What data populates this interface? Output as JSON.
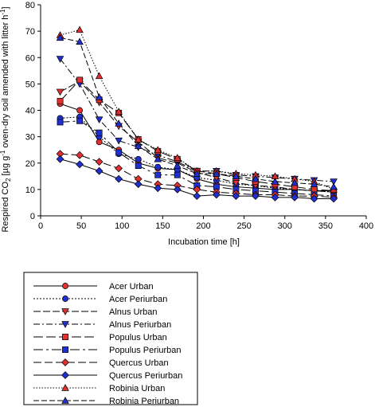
{
  "chart_data": {
    "type": "line",
    "x": [
      24,
      48,
      72,
      96,
      120,
      144,
      168,
      192,
      216,
      240,
      264,
      288,
      312,
      336,
      360
    ],
    "xlabel": "Incubation time [h]",
    "ylabel_prefix": "Respired CO",
    "ylabel_sub": "2",
    "ylabel_mid": " [µg g",
    "ylabel_sup1": "-1",
    "ylabel_mid2": " oven-dry soil amended with litter h",
    "ylabel_sup2": "-1",
    "ylabel_end": "]",
    "xlim": [
      0,
      400
    ],
    "ylim": [
      0,
      80
    ],
    "xticks": [
      "0",
      "50",
      "100",
      "150",
      "200",
      "250",
      "300",
      "350",
      "400"
    ],
    "yticks": [
      "0",
      "10",
      "20",
      "30",
      "40",
      "50",
      "60",
      "70",
      "80"
    ],
    "grid": false,
    "legend_position": "bottom-left, below plot",
    "series": [
      {
        "name": "Acer Urban",
        "marker": "circle",
        "fill": "#e03030",
        "dash": "",
        "values": [
          42.5,
          40,
          28,
          25,
          20,
          18,
          17.5,
          14,
          12,
          11,
          10.5,
          10,
          10,
          9.5,
          9.5
        ]
      },
      {
        "name": "Acer Periurban",
        "marker": "circle",
        "fill": "#2030d0",
        "dash": "2,2",
        "values": [
          37,
          37.5,
          30,
          23.5,
          21.5,
          18.5,
          17.5,
          14.5,
          13.5,
          12,
          11.5,
          10.5,
          10,
          9.5,
          9
        ]
      },
      {
        "name": "Alnus Urban",
        "marker": "triangle-down",
        "fill": "#e03030",
        "dash": "9,3",
        "values": [
          47,
          51,
          43,
          34,
          28,
          22,
          20,
          16.5,
          14.5,
          12.5,
          11.5,
          11,
          10,
          9.5,
          9
        ]
      },
      {
        "name": "Alnus Periurban",
        "marker": "triangle-down",
        "fill": "#2030d0",
        "dash": "8,3,2,3",
        "values": [
          59.5,
          50,
          36.5,
          28.5,
          26,
          23,
          20.5,
          17,
          17,
          15.5,
          15,
          14.5,
          14,
          13.5,
          13
        ]
      },
      {
        "name": "Populus Urban",
        "marker": "square",
        "fill": "#e03030",
        "dash": "12,4",
        "values": [
          43.5,
          51.5,
          44,
          39,
          29,
          24.5,
          21.5,
          17,
          16,
          14.5,
          13,
          12,
          11,
          10,
          9.5
        ]
      },
      {
        "name": "Populus Periurban",
        "marker": "square",
        "fill": "#2030d0",
        "dash": "12,4,3,4",
        "values": [
          35.5,
          36,
          31.5,
          24,
          19,
          15.5,
          15.5,
          11.5,
          11,
          10,
          9.5,
          9,
          8.5,
          8,
          7.5
        ]
      },
      {
        "name": "Quercus Urban",
        "marker": "diamond",
        "fill": "#e03030",
        "dash": "10,4",
        "values": [
          23.5,
          23,
          20.5,
          18,
          14,
          12,
          11.5,
          10,
          9,
          8.5,
          8,
          8,
          7.5,
          7.5,
          7
        ]
      },
      {
        "name": "Quercus Periurban",
        "marker": "diamond",
        "fill": "#2030d0",
        "dash": "",
        "values": [
          21.5,
          19.5,
          17,
          14,
          12,
          10.5,
          10,
          7.5,
          8,
          7.5,
          7.5,
          7,
          7,
          6.5,
          6.5
        ]
      },
      {
        "name": "Robinia Urban",
        "marker": "triangle-up",
        "fill": "#e03030",
        "dash": "1.5,2",
        "values": [
          68.5,
          70.5,
          53,
          39.5,
          29,
          25,
          22,
          17,
          17,
          16,
          15.5,
          15,
          14,
          13,
          10
        ]
      },
      {
        "name": "Robinia Periurban",
        "marker": "triangle-up",
        "fill": "#2030d0",
        "dash": "7,3",
        "values": [
          67.5,
          66,
          45,
          35,
          26.5,
          21.5,
          19,
          16,
          16,
          15,
          14,
          13,
          12.5,
          12,
          11
        ]
      }
    ]
  }
}
